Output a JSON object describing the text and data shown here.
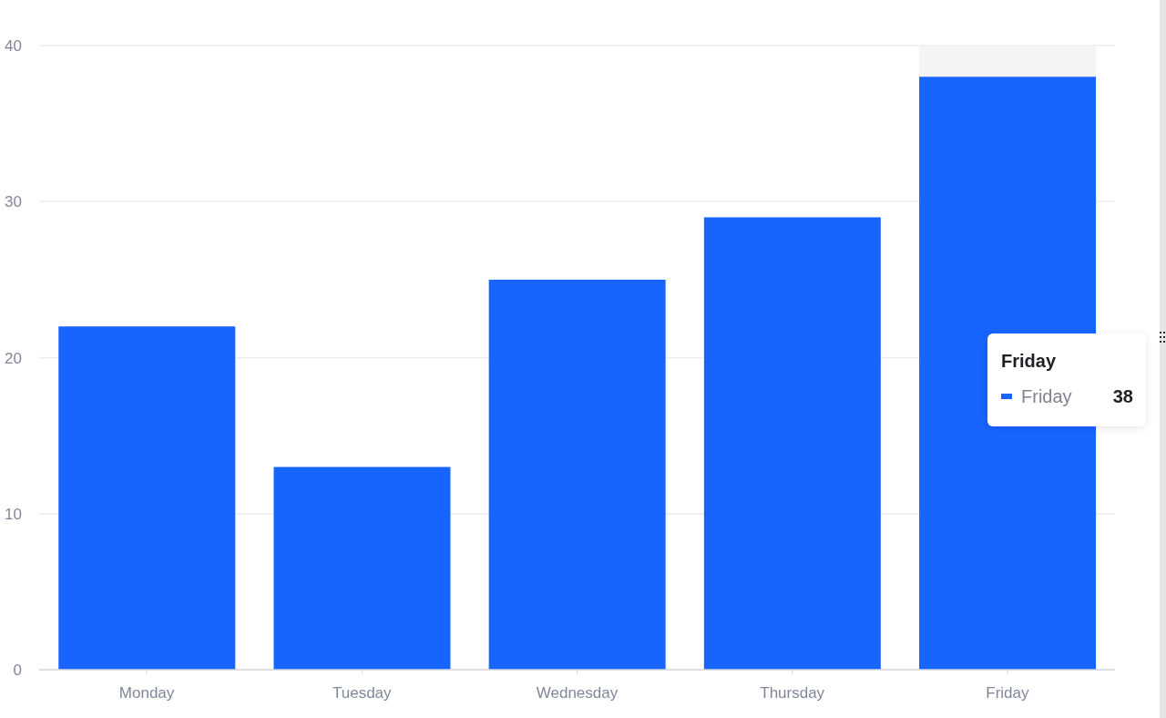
{
  "chart_data": {
    "type": "bar",
    "categories": [
      "Monday",
      "Tuesday",
      "Wednesday",
      "Thursday",
      "Friday"
    ],
    "values": [
      22,
      13,
      25,
      29,
      38
    ],
    "color": "#1764ff",
    "ylim": [
      0,
      40
    ],
    "yticks": [
      0,
      10,
      20,
      30,
      40
    ],
    "grid": "y",
    "bands": [
      {
        "axis": "x",
        "from": "Friday",
        "to": "Friday",
        "color": "#f4f4f6"
      }
    ],
    "annotations": [
      "Friday",
      "Friday",
      "38"
    ]
  }
}
